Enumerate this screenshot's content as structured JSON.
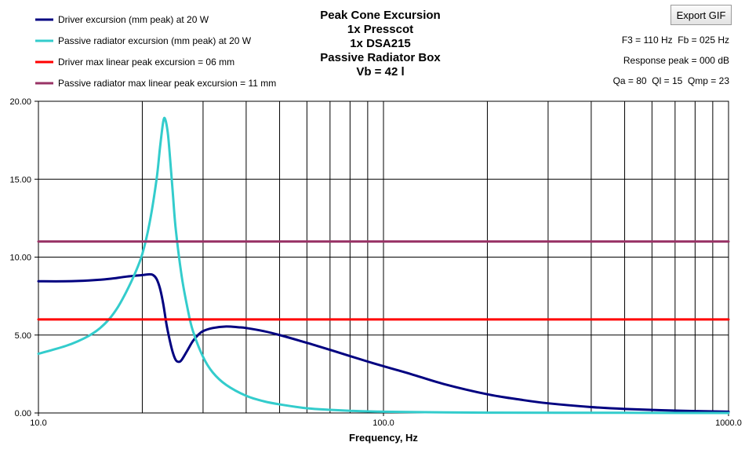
{
  "toolbar": {
    "export_label": "Export GIF"
  },
  "title": {
    "lines": [
      "Peak Cone Excursion",
      "1x Presscot",
      "1x DSA215",
      "Passive Radiator Box",
      "Vb = 42 l"
    ]
  },
  "info": {
    "line1": "F3 = 110 Hz  Fb = 025 Hz",
    "line2": "Response peak = 000 dB",
    "line3": "Qa = 80  Ql = 15  Qmp = 23"
  },
  "chart_data": {
    "type": "line",
    "title": "Peak Cone Excursion",
    "xlabel": "Frequency, Hz",
    "ylabel": "",
    "xscale": "log",
    "xlim": [
      10,
      1000
    ],
    "ylim": [
      0,
      20
    ],
    "x_ticks": [
      "10.0",
      "100.0",
      "1000.0"
    ],
    "y_ticks": [
      "0.00",
      "5.00",
      "10.00",
      "15.00",
      "20.00"
    ],
    "grid": true,
    "legend_position": "top-left",
    "series": [
      {
        "name": "Driver excursion (mm peak) at 20 W",
        "color": "#000080",
        "points": [
          [
            10,
            8.45
          ],
          [
            12,
            8.45
          ],
          [
            14,
            8.5
          ],
          [
            16,
            8.6
          ],
          [
            18,
            8.75
          ],
          [
            20,
            8.85
          ],
          [
            21,
            8.9
          ],
          [
            21.5,
            8.85
          ],
          [
            22,
            8.6
          ],
          [
            22.5,
            8.0
          ],
          [
            23,
            7.0
          ],
          [
            23.5,
            5.7
          ],
          [
            24,
            4.7
          ],
          [
            24.5,
            3.9
          ],
          [
            25,
            3.4
          ],
          [
            25.5,
            3.28
          ],
          [
            26,
            3.4
          ],
          [
            27,
            4.0
          ],
          [
            28,
            4.6
          ],
          [
            29,
            5.0
          ],
          [
            30,
            5.25
          ],
          [
            32,
            5.45
          ],
          [
            35,
            5.55
          ],
          [
            38,
            5.5
          ],
          [
            40,
            5.45
          ],
          [
            45,
            5.25
          ],
          [
            50,
            5.0
          ],
          [
            60,
            4.5
          ],
          [
            70,
            4.05
          ],
          [
            80,
            3.65
          ],
          [
            90,
            3.3
          ],
          [
            100,
            3.0
          ],
          [
            120,
            2.5
          ],
          [
            150,
            1.85
          ],
          [
            200,
            1.2
          ],
          [
            250,
            0.85
          ],
          [
            300,
            0.62
          ],
          [
            400,
            0.38
          ],
          [
            500,
            0.26
          ],
          [
            700,
            0.15
          ],
          [
            1000,
            0.08
          ]
        ]
      },
      {
        "name": "Passive radiator excursion (mm peak) at 20 W",
        "color": "#33cccc",
        "points": [
          [
            10,
            3.8
          ],
          [
            11,
            4.05
          ],
          [
            12,
            4.3
          ],
          [
            13,
            4.6
          ],
          [
            14,
            4.95
          ],
          [
            15,
            5.4
          ],
          [
            16,
            6.0
          ],
          [
            17,
            6.8
          ],
          [
            18,
            7.8
          ],
          [
            19,
            8.9
          ],
          [
            20,
            10.2
          ],
          [
            21,
            12.2
          ],
          [
            22,
            15.0
          ],
          [
            22.5,
            17.0
          ],
          [
            23,
            18.7
          ],
          [
            23.3,
            18.85
          ],
          [
            23.7,
            18.0
          ],
          [
            24,
            16.7
          ],
          [
            24.5,
            14.2
          ],
          [
            25,
            11.8
          ],
          [
            26,
            8.8
          ],
          [
            27,
            6.8
          ],
          [
            28,
            5.3
          ],
          [
            30,
            3.6
          ],
          [
            32,
            2.6
          ],
          [
            35,
            1.8
          ],
          [
            40,
            1.1
          ],
          [
            45,
            0.75
          ],
          [
            50,
            0.55
          ],
          [
            60,
            0.3
          ],
          [
            70,
            0.2
          ],
          [
            80,
            0.14
          ],
          [
            100,
            0.08
          ],
          [
            150,
            0.04
          ],
          [
            200,
            0.02
          ],
          [
            500,
            0.01
          ],
          [
            1000,
            0.0
          ]
        ]
      },
      {
        "name": "Driver max linear peak excursion = 06 mm",
        "color": "#ff0000",
        "points": [
          [
            10,
            6.0
          ],
          [
            1000,
            6.0
          ]
        ]
      },
      {
        "name": "Passive radiator max linear peak excursion = 11 mm",
        "color": "#993366",
        "points": [
          [
            10,
            11.0
          ],
          [
            1000,
            11.0
          ]
        ]
      }
    ]
  }
}
